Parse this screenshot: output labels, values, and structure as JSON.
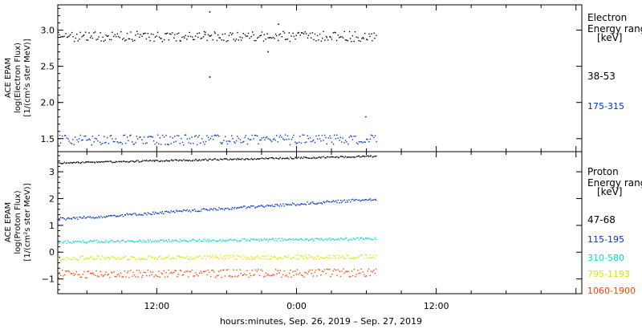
{
  "chart_data": [
    {
      "type": "scatter",
      "panel": "electron",
      "ylabel": [
        "ACE EPAM",
        "log(Electron Flux)",
        "[1/(cm²s ster MeV)]"
      ],
      "ylim": [
        1.32,
        3.35
      ],
      "yticks": [
        1.5,
        2.0,
        2.5,
        3.0
      ],
      "ytick_labels": [
        "1.5",
        "2.0",
        "2.5",
        "3.0"
      ],
      "legend_title": [
        "Electron",
        "Energy ranges",
        "[keV]"
      ],
      "series": [
        {
          "name": "38-53",
          "color": "#000000",
          "base": 2.92,
          "amp": 0.07,
          "trend": 0.0,
          "outliers": [
            [
              -7.5,
              3.26
            ],
            [
              -7.9,
              2.95
            ],
            [
              -7.5,
              2.36
            ],
            [
              -1.6,
              3.09
            ],
            [
              -2.5,
              2.71
            ]
          ]
        },
        {
          "name": "175-315",
          "color": "#0033cc",
          "base": 1.49,
          "amp": 0.07,
          "trend": 0.0,
          "outliers": [
            [
              -7.5,
              2.36
            ],
            [
              5.9,
              1.81
            ]
          ]
        }
      ]
    },
    {
      "type": "scatter",
      "panel": "proton",
      "ylabel": [
        "ACE EPAM",
        "log(Proton Flux)",
        "[1/(cm²s ster MeV)]"
      ],
      "ylim": [
        -1.55,
        3.75
      ],
      "yticks": [
        -1,
        0,
        1,
        2,
        3
      ],
      "ytick_labels": [
        "−1",
        "0",
        "1",
        "2",
        "3"
      ],
      "legend_title": [
        "Proton",
        "Energy ranges",
        "[keV]"
      ],
      "series": [
        {
          "name": "47-68",
          "color": "#000000",
          "base": 3.35,
          "amp": 0.03,
          "trend": 0.25,
          "outliers": []
        },
        {
          "name": "115-195",
          "color": "#0033cc",
          "base": 1.25,
          "amp": 0.05,
          "trend": 0.75,
          "outliers": []
        },
        {
          "name": "310-580",
          "color": "#00d8d8",
          "base": 0.4,
          "amp": 0.05,
          "trend": 0.12,
          "outliers": []
        },
        {
          "name": "795-1193",
          "color": "#d8e800",
          "base": -0.2,
          "amp": 0.08,
          "trend": 0.05,
          "outliers": []
        },
        {
          "name": "1060-1900",
          "color": "#ff4400",
          "base": -0.8,
          "amp": 0.15,
          "trend": 0.05,
          "outliers": []
        }
      ]
    }
  ],
  "x_axis": {
    "range_hours": [
      -20.5,
      24.5
    ],
    "data_end_hours": 6.8,
    "tick_hours": [
      -12,
      0,
      12
    ],
    "tick_labels": [
      "12:00",
      "0:00",
      "12:00"
    ],
    "xlabel": "hours:minutes, Sep. 26, 2019 – Sep. 27, 2019"
  }
}
